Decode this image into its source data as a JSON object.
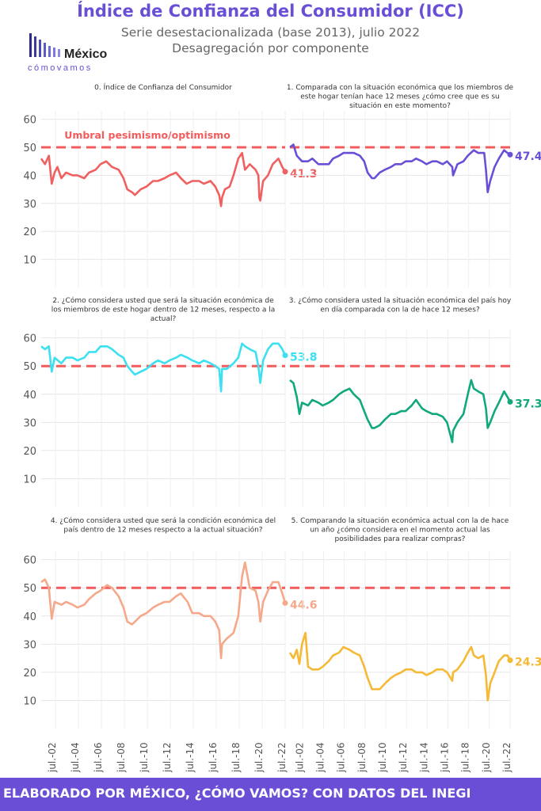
{
  "header": {
    "title": "Índice de Confianza del Consumidor (ICC)",
    "subtitle_line1": "Serie desestacionalizada (base 2013), julio 2022",
    "subtitle_line2": "Desagregación por componente"
  },
  "logo": {
    "name": "México",
    "tagline": "cómovamos"
  },
  "footer": {
    "text": "ELABORADO POR MÉXICO, ¿CÓMO VAMOS? CON DATOS DEL INEGI"
  },
  "chart_data": {
    "type": "line",
    "y_ticks": [
      10,
      20,
      30,
      40,
      50,
      60
    ],
    "ylim": [
      0,
      63
    ],
    "x_tick_labels": [
      "jul.-02",
      "jul.-04",
      "jul.-06",
      "jul.-08",
      "jul.-10",
      "jul.-12",
      "jul.-14",
      "jul.-16",
      "jul.-18",
      "jul.-20",
      "jul.-22"
    ],
    "xlim": [
      "2001-04",
      "2022-07"
    ],
    "threshold": {
      "value": 50,
      "label": "Umbral pesimismo/optimismo",
      "color": "#f25c5c"
    },
    "panels": [
      {
        "title": "0. Índice de Confianza del Consumidor",
        "color": "#f06060",
        "last_label": "41.3",
        "x": [
          "2001-04",
          "2001-08",
          "2001-12",
          "2002-03",
          "2002-06",
          "2002-09",
          "2003-01",
          "2003-06",
          "2004-01",
          "2004-06",
          "2005-01",
          "2005-06",
          "2006-01",
          "2006-06",
          "2006-12",
          "2007-06",
          "2008-01",
          "2008-06",
          "2008-10",
          "2009-03",
          "2009-06",
          "2009-12",
          "2010-06",
          "2011-01",
          "2011-06",
          "2012-01",
          "2012-06",
          "2013-01",
          "2013-06",
          "2013-12",
          "2014-06",
          "2015-01",
          "2015-06",
          "2016-01",
          "2016-06",
          "2016-10",
          "2016-12",
          "2017-01",
          "2017-04",
          "2017-09",
          "2018-01",
          "2018-06",
          "2018-10",
          "2019-01",
          "2019-06",
          "2019-12",
          "2020-03",
          "2020-04",
          "2020-05",
          "2020-08",
          "2021-01",
          "2021-06",
          "2021-12",
          "2022-04",
          "2022-07"
        ],
        "y": [
          46,
          44,
          47,
          37,
          41,
          43,
          39,
          41,
          40,
          40,
          39,
          41,
          42,
          44,
          45,
          43,
          42,
          39,
          35,
          34,
          33,
          35,
          36,
          38,
          38,
          39,
          40,
          41,
          39,
          37,
          38,
          38,
          37,
          38,
          36,
          33,
          29,
          32,
          35,
          36,
          40,
          46,
          48,
          42,
          44,
          42,
          40,
          32,
          31,
          38,
          40,
          44,
          46,
          43,
          41.3
        ]
      },
      {
        "title": "1. Comparada con la situación económica que los miembros de este hogar tenían hace 12 meses ¿cómo cree que es su situación en este momento?",
        "color": "#6a4fd6",
        "last_label": "47.4",
        "x": [
          "2001-04",
          "2001-08",
          "2001-12",
          "2002-06",
          "2003-01",
          "2003-06",
          "2004-01",
          "2004-06",
          "2005-01",
          "2005-06",
          "2006-01",
          "2006-06",
          "2006-12",
          "2007-06",
          "2008-01",
          "2008-06",
          "2008-10",
          "2009-03",
          "2009-06",
          "2009-12",
          "2010-06",
          "2011-01",
          "2011-06",
          "2012-01",
          "2012-06",
          "2013-01",
          "2013-06",
          "2014-01",
          "2014-06",
          "2015-01",
          "2015-06",
          "2016-01",
          "2016-06",
          "2016-12",
          "2017-01",
          "2017-06",
          "2018-01",
          "2018-06",
          "2019-01",
          "2019-06",
          "2020-01",
          "2020-03",
          "2020-05",
          "2020-08",
          "2021-01",
          "2021-06",
          "2021-12",
          "2022-04",
          "2022-07"
        ],
        "y": [
          50,
          51,
          47,
          45,
          45,
          46,
          44,
          44,
          44,
          46,
          47,
          48,
          48,
          48,
          47,
          45,
          41,
          39,
          39,
          41,
          42,
          43,
          44,
          44,
          45,
          45,
          46,
          45,
          44,
          45,
          45,
          44,
          45,
          43,
          40,
          44,
          45,
          47,
          49,
          48,
          48,
          42,
          34,
          38,
          43,
          46,
          49,
          48,
          47.4
        ]
      },
      {
        "title": "2. ¿Cómo considera usted que será la situación económica de los miembros de este hogar dentro de 12 meses, respecto a la actual?",
        "color": "#3de0f0",
        "last_label": "53.8",
        "x": [
          "2001-04",
          "2001-08",
          "2001-12",
          "2002-03",
          "2002-06",
          "2003-01",
          "2003-06",
          "2004-01",
          "2004-06",
          "2005-01",
          "2005-06",
          "2006-01",
          "2006-06",
          "2007-01",
          "2007-06",
          "2008-01",
          "2008-06",
          "2008-10",
          "2009-03",
          "2009-06",
          "2009-12",
          "2010-06",
          "2011-01",
          "2011-06",
          "2012-01",
          "2012-06",
          "2013-01",
          "2013-06",
          "2014-01",
          "2014-06",
          "2015-01",
          "2015-06",
          "2016-01",
          "2016-06",
          "2016-10",
          "2016-12",
          "2017-01",
          "2017-06",
          "2018-01",
          "2018-06",
          "2018-10",
          "2019-01",
          "2019-06",
          "2019-12",
          "2020-03",
          "2020-05",
          "2020-08",
          "2021-01",
          "2021-06",
          "2021-12",
          "2022-04",
          "2022-07"
        ],
        "y": [
          57,
          56,
          57,
          48,
          53,
          51,
          53,
          53,
          52,
          53,
          55,
          55,
          57,
          57,
          56,
          54,
          53,
          50,
          48,
          47,
          48,
          49,
          51,
          52,
          51,
          52,
          53,
          54,
          53,
          52,
          51,
          52,
          51,
          50,
          49,
          41,
          49,
          49,
          51,
          53,
          58,
          57,
          56,
          55,
          50,
          44,
          52,
          56,
          58,
          58,
          56,
          53.8
        ]
      },
      {
        "title": "3. ¿Cómo considera usted la situación económica del país hoy en día comparada con la de hace 12 meses?",
        "color": "#10a87c",
        "last_label": "37.3",
        "x": [
          "2001-04",
          "2001-08",
          "2001-12",
          "2002-03",
          "2002-06",
          "2003-01",
          "2003-06",
          "2004-01",
          "2004-06",
          "2005-01",
          "2005-06",
          "2006-01",
          "2006-06",
          "2007-01",
          "2007-06",
          "2008-01",
          "2008-06",
          "2008-10",
          "2009-03",
          "2009-06",
          "2009-12",
          "2010-06",
          "2011-01",
          "2011-06",
          "2012-01",
          "2012-06",
          "2013-01",
          "2013-06",
          "2014-01",
          "2014-06",
          "2015-01",
          "2015-06",
          "2016-01",
          "2016-06",
          "2016-12",
          "2017-01",
          "2017-06",
          "2018-01",
          "2018-06",
          "2018-10",
          "2019-01",
          "2019-06",
          "2019-12",
          "2020-03",
          "2020-05",
          "2020-08",
          "2021-01",
          "2021-06",
          "2021-12",
          "2022-04",
          "2022-07"
        ],
        "y": [
          45,
          44,
          39,
          33,
          37,
          36,
          38,
          37,
          36,
          37,
          38,
          40,
          41,
          42,
          40,
          38,
          34,
          31,
          28,
          28,
          29,
          31,
          33,
          33,
          34,
          34,
          36,
          38,
          35,
          34,
          33,
          33,
          32,
          30,
          23,
          27,
          30,
          33,
          40,
          45,
          42,
          41,
          40,
          35,
          28,
          30,
          34,
          37,
          41,
          39,
          37.3
        ]
      },
      {
        "title": "4. ¿Cómo considera usted que será la condición económica del país dentro de 12 meses respecto a la actual situación?",
        "color": "#f5a88a",
        "last_label": "44.6",
        "x": [
          "2001-04",
          "2001-08",
          "2001-12",
          "2002-03",
          "2002-06",
          "2003-01",
          "2003-06",
          "2004-01",
          "2004-06",
          "2005-01",
          "2005-06",
          "2006-01",
          "2006-06",
          "2007-01",
          "2007-06",
          "2008-01",
          "2008-06",
          "2008-10",
          "2009-03",
          "2009-06",
          "2009-12",
          "2010-06",
          "2011-01",
          "2011-06",
          "2012-01",
          "2012-06",
          "2013-01",
          "2013-06",
          "2014-01",
          "2014-06",
          "2015-01",
          "2015-06",
          "2016-01",
          "2016-06",
          "2016-10",
          "2016-12",
          "2017-01",
          "2017-06",
          "2018-01",
          "2018-06",
          "2018-10",
          "2019-01",
          "2019-06",
          "2019-12",
          "2020-03",
          "2020-05",
          "2020-08",
          "2021-01",
          "2021-06",
          "2021-12",
          "2022-04",
          "2022-07"
        ],
        "y": [
          52,
          53,
          50,
          39,
          45,
          44,
          45,
          44,
          43,
          44,
          46,
          48,
          49,
          51,
          50,
          47,
          43,
          38,
          37,
          38,
          40,
          41,
          43,
          44,
          45,
          45,
          47,
          48,
          45,
          41,
          41,
          40,
          40,
          38,
          35,
          25,
          30,
          32,
          34,
          40,
          54,
          59,
          50,
          49,
          45,
          38,
          45,
          49,
          52,
          52,
          48,
          44.6
        ]
      },
      {
        "title": "5. Comparando la situación económica actual con la de hace un año ¿cómo considera en el momento actual las posibilidades para realizar compras?",
        "color": "#f5b935",
        "last_label": "24.3",
        "x": [
          "2001-04",
          "2001-08",
          "2001-12",
          "2002-03",
          "2002-06",
          "2002-10",
          "2003-01",
          "2003-06",
          "2004-01",
          "2004-06",
          "2005-01",
          "2005-06",
          "2006-01",
          "2006-06",
          "2007-01",
          "2007-06",
          "2008-01",
          "2008-06",
          "2008-10",
          "2009-03",
          "2009-06",
          "2009-12",
          "2010-06",
          "2011-01",
          "2011-06",
          "2012-01",
          "2012-06",
          "2013-01",
          "2013-06",
          "2014-01",
          "2014-06",
          "2015-01",
          "2015-06",
          "2016-01",
          "2016-06",
          "2016-12",
          "2017-01",
          "2017-06",
          "2018-01",
          "2018-06",
          "2018-10",
          "2019-01",
          "2019-06",
          "2019-12",
          "2020-03",
          "2020-05",
          "2020-08",
          "2021-01",
          "2021-06",
          "2021-12",
          "2022-04",
          "2022-07"
        ],
        "y": [
          27,
          25,
          28,
          23,
          30,
          34,
          22,
          21,
          21,
          22,
          24,
          26,
          27,
          29,
          28,
          27,
          26,
          22,
          18,
          14,
          14,
          14,
          16,
          18,
          19,
          20,
          21,
          21,
          20,
          20,
          19,
          20,
          21,
          21,
          20,
          17,
          20,
          21,
          24,
          27,
          29,
          26,
          25,
          26,
          19,
          10,
          16,
          20,
          24,
          26,
          26,
          24.3
        ]
      }
    ]
  }
}
